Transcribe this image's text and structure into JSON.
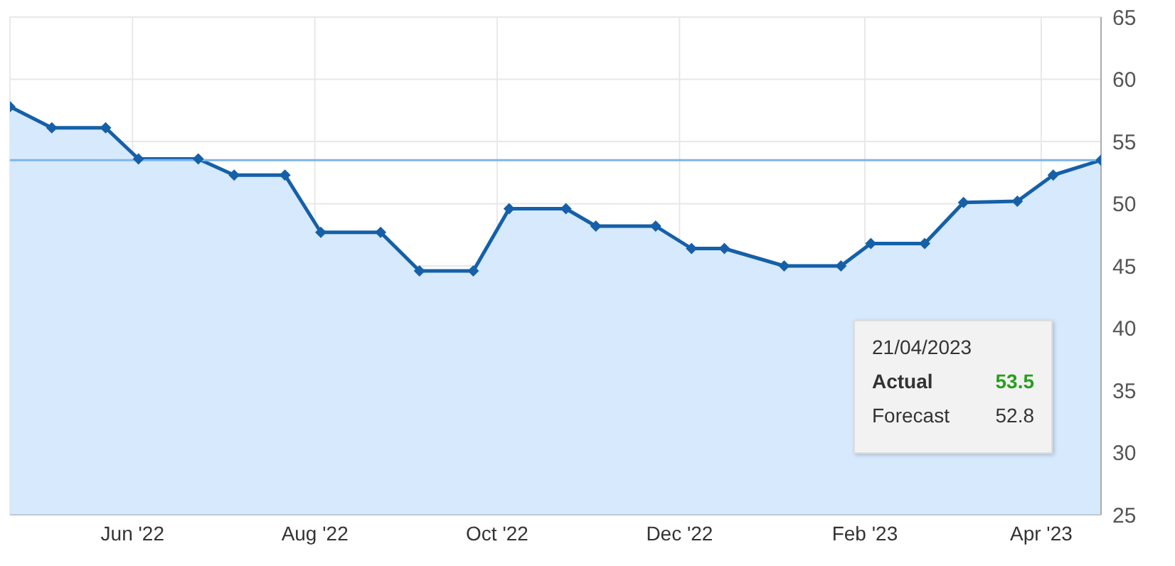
{
  "chart_data": {
    "type": "area",
    "x": [
      "2022-04-21",
      "2022-05-05",
      "2022-05-23",
      "2022-06-03",
      "2022-06-23",
      "2022-07-05",
      "2022-07-22",
      "2022-08-03",
      "2022-08-23",
      "2022-09-05",
      "2022-09-23",
      "2022-10-05",
      "2022-10-24",
      "2022-11-03",
      "2022-11-23",
      "2022-12-05",
      "2022-12-16",
      "2023-01-05",
      "2023-01-24",
      "2023-02-03",
      "2023-02-21",
      "2023-03-06",
      "2023-03-24",
      "2023-04-05",
      "2023-04-21"
    ],
    "series": [
      {
        "color": "#1560a8",
        "values": [
          57.8,
          56.1,
          56.1,
          53.6,
          53.6,
          52.3,
          52.3,
          47.7,
          47.7,
          44.6,
          44.6,
          49.6,
          49.6,
          48.2,
          48.2,
          46.4,
          46.4,
          45.0,
          45.0,
          46.8,
          46.8,
          50.1,
          50.2,
          52.3,
          53.5
        ]
      }
    ],
    "xlim": [
      "2022-04-21",
      "2023-04-21"
    ],
    "xticks": [
      {
        "value": "2022-06-01",
        "label": "Jun '22"
      },
      {
        "value": "2022-08-01",
        "label": "Aug '22"
      },
      {
        "value": "2022-10-01",
        "label": "Oct '22"
      },
      {
        "value": "2022-12-01",
        "label": "Dec '22"
      },
      {
        "value": "2023-02-01",
        "label": "Feb '23"
      },
      {
        "value": "2023-04-01",
        "label": "Apr '23"
      }
    ],
    "ylim": [
      25,
      65
    ],
    "yticks": [
      25,
      30,
      35,
      40,
      45,
      50,
      55,
      60,
      65
    ],
    "grid": true,
    "marker": "diamond",
    "ref_lines": [
      {
        "axis": "y",
        "value": 53.5,
        "color": "#7cb5ec"
      }
    ],
    "annotations": [
      "21/04/2023",
      "Actual",
      "53.5",
      "Forecast",
      "52.8"
    ]
  }
}
